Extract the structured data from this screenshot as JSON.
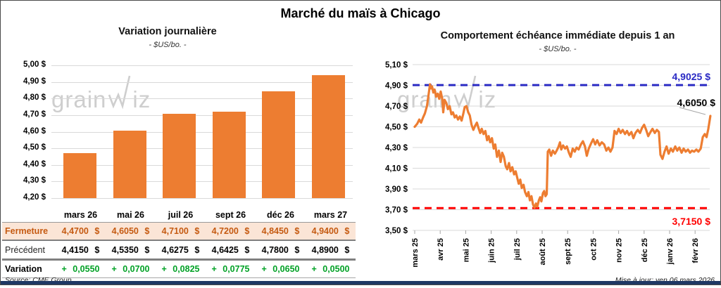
{
  "title": "Marché du maïs à Chicago",
  "watermark": {
    "pre": "grain",
    "post": "iz"
  },
  "footer": {
    "source": "Source: CME Group",
    "updated": "Mise à jour: ven 06 mars 2026"
  },
  "colors": {
    "orange": "#ED7D31",
    "blue": "#2A2AC4",
    "red": "#FF0000",
    "green": "#00A125",
    "peach": "#FBE5D6",
    "brown": "#C55A11",
    "navy": "#1F3864",
    "grid": "#D9D9D9",
    "wm": "#C6C6C6"
  },
  "chart_data": [
    {
      "type": "bar",
      "title": "Variation journalière",
      "subtitle": "- $US/bo. -",
      "categories": [
        "mars 26",
        "mai 26",
        "juil 26",
        "sept 26",
        "déc 26",
        "mars 27"
      ],
      "values": [
        4.47,
        4.605,
        4.71,
        4.72,
        4.845,
        4.94
      ],
      "ylim": [
        4.2,
        5.0
      ],
      "ytick_step": 0.1,
      "ytick_labels": [
        "5,00 $",
        "4,90 $",
        "4,80 $",
        "4,70 $",
        "4,60 $",
        "4,50 $",
        "4,40 $",
        "4,30 $",
        "4,20 $"
      ],
      "grid": true,
      "bar_color": "#ED7D31"
    },
    {
      "type": "line",
      "title": "Comportement échéance immédiate depuis 1 an",
      "subtitle": "- $US/bo. -",
      "x_categories": [
        "mars 25",
        "avr 25",
        "mai 25",
        "juin 25",
        "juil 25",
        "août 25",
        "sept 25",
        "oct 25",
        "nov 25",
        "déc 25",
        "janv 26",
        "févr 26"
      ],
      "ylim": [
        3.5,
        5.1
      ],
      "ytick_step": 0.2,
      "ytick_labels": [
        "5,10 $",
        "4,90 $",
        "4,70 $",
        "4,50 $",
        "4,30 $",
        "4,10 $",
        "3,90 $",
        "3,70 $",
        "3,50 $"
      ],
      "grid": true,
      "line_color": "#ED7D31",
      "ref_high": {
        "value": 4.9025,
        "label": "4,9025 $",
        "color": "#2A2AC4"
      },
      "ref_low": {
        "value": 3.715,
        "label": "3,7150 $",
        "color": "#FF0000"
      },
      "last_point": {
        "value": 4.605,
        "label": "4,6050 $"
      },
      "series": [
        [
          0.0,
          4.5
        ],
        [
          0.1,
          4.53
        ],
        [
          0.18,
          4.57
        ],
        [
          0.25,
          4.54
        ],
        [
          0.33,
          4.59
        ],
        [
          0.4,
          4.63
        ],
        [
          0.48,
          4.7
        ],
        [
          0.55,
          4.82
        ],
        [
          0.6,
          4.91
        ],
        [
          0.64,
          4.87
        ],
        [
          0.68,
          4.89
        ],
        [
          0.73,
          4.83
        ],
        [
          0.78,
          4.86
        ],
        [
          0.84,
          4.79
        ],
        [
          0.9,
          4.82
        ],
        [
          0.96,
          4.77
        ],
        [
          1.02,
          4.84
        ],
        [
          1.08,
          4.77
        ],
        [
          1.12,
          4.64
        ],
        [
          1.17,
          4.76
        ],
        [
          1.24,
          4.73
        ],
        [
          1.3,
          4.67
        ],
        [
          1.37,
          4.7
        ],
        [
          1.44,
          4.62
        ],
        [
          1.5,
          4.64
        ],
        [
          1.57,
          4.59
        ],
        [
          1.63,
          4.61
        ],
        [
          1.7,
          4.57
        ],
        [
          1.77,
          4.6
        ],
        [
          1.84,
          4.56
        ],
        [
          1.9,
          4.62
        ],
        [
          1.96,
          4.69
        ],
        [
          2.03,
          4.7
        ],
        [
          2.1,
          4.64
        ],
        [
          2.16,
          4.61
        ],
        [
          2.23,
          4.52
        ],
        [
          2.3,
          4.47
        ],
        [
          2.37,
          4.51
        ],
        [
          2.44,
          4.54
        ],
        [
          2.5,
          4.49
        ],
        [
          2.57,
          4.44
        ],
        [
          2.63,
          4.48
        ],
        [
          2.7,
          4.43
        ],
        [
          2.77,
          4.46
        ],
        [
          2.84,
          4.37
        ],
        [
          2.9,
          4.41
        ],
        [
          2.96,
          4.35
        ],
        [
          3.03,
          4.39
        ],
        [
          3.1,
          4.29
        ],
        [
          3.16,
          4.33
        ],
        [
          3.23,
          4.21
        ],
        [
          3.3,
          4.27
        ],
        [
          3.37,
          4.16
        ],
        [
          3.43,
          4.25
        ],
        [
          3.5,
          4.21
        ],
        [
          3.57,
          4.12
        ],
        [
          3.63,
          4.09
        ],
        [
          3.7,
          4.15
        ],
        [
          3.76,
          4.07
        ],
        [
          3.83,
          4.11
        ],
        [
          3.9,
          4.04
        ],
        [
          3.96,
          4.07
        ],
        [
          4.03,
          4.0
        ],
        [
          4.08,
          3.95
        ],
        [
          4.14,
          3.99
        ],
        [
          4.2,
          3.91
        ],
        [
          4.27,
          3.94
        ],
        [
          4.33,
          3.87
        ],
        [
          4.4,
          3.83
        ],
        [
          4.46,
          3.87
        ],
        [
          4.52,
          3.79
        ],
        [
          4.58,
          3.83
        ],
        [
          4.64,
          3.75
        ],
        [
          4.7,
          3.72
        ],
        [
          4.76,
          3.76
        ],
        [
          4.81,
          3.73
        ],
        [
          4.87,
          3.79
        ],
        [
          4.92,
          3.82
        ],
        [
          4.97,
          3.78
        ],
        [
          5.03,
          3.86
        ],
        [
          5.08,
          3.88
        ],
        [
          5.13,
          3.83
        ],
        [
          5.18,
          3.85
        ],
        [
          5.22,
          4.26
        ],
        [
          5.28,
          4.28
        ],
        [
          5.35,
          4.22
        ],
        [
          5.42,
          4.27
        ],
        [
          5.5,
          4.24
        ],
        [
          5.57,
          4.27
        ],
        [
          5.63,
          4.3
        ],
        [
          5.7,
          4.35
        ],
        [
          5.75,
          4.28
        ],
        [
          5.82,
          4.32
        ],
        [
          5.9,
          4.29
        ],
        [
          5.97,
          4.31
        ],
        [
          6.05,
          4.25
        ],
        [
          6.12,
          4.21
        ],
        [
          6.2,
          4.29
        ],
        [
          6.28,
          4.26
        ],
        [
          6.35,
          4.3
        ],
        [
          6.43,
          4.28
        ],
        [
          6.52,
          4.33
        ],
        [
          6.6,
          4.36
        ],
        [
          6.68,
          4.31
        ],
        [
          6.75,
          4.22
        ],
        [
          6.83,
          4.29
        ],
        [
          6.92,
          4.34
        ],
        [
          7.0,
          4.38
        ],
        [
          7.08,
          4.33
        ],
        [
          7.16,
          4.37
        ],
        [
          7.25,
          4.32
        ],
        [
          7.34,
          4.35
        ],
        [
          7.43,
          4.33
        ],
        [
          7.52,
          4.27
        ],
        [
          7.6,
          4.3
        ],
        [
          7.68,
          4.26
        ],
        [
          7.76,
          4.3
        ],
        [
          7.84,
          4.46
        ],
        [
          7.92,
          4.43
        ],
        [
          8.0,
          4.48
        ],
        [
          8.08,
          4.44
        ],
        [
          8.16,
          4.47
        ],
        [
          8.25,
          4.43
        ],
        [
          8.33,
          4.46
        ],
        [
          8.41,
          4.42
        ],
        [
          8.5,
          4.45
        ],
        [
          8.58,
          4.39
        ],
        [
          8.66,
          4.44
        ],
        [
          8.75,
          4.47
        ],
        [
          8.84,
          4.44
        ],
        [
          8.92,
          4.49
        ],
        [
          9.0,
          4.52
        ],
        [
          9.08,
          4.47
        ],
        [
          9.16,
          4.41
        ],
        [
          9.25,
          4.45
        ],
        [
          9.33,
          4.48
        ],
        [
          9.42,
          4.44
        ],
        [
          9.5,
          4.47
        ],
        [
          9.58,
          4.45
        ],
        [
          9.64,
          4.23
        ],
        [
          9.72,
          4.19
        ],
        [
          9.8,
          4.26
        ],
        [
          9.88,
          4.31
        ],
        [
          9.96,
          4.24
        ],
        [
          10.05,
          4.29
        ],
        [
          10.13,
          4.26
        ],
        [
          10.22,
          4.31
        ],
        [
          10.3,
          4.27
        ],
        [
          10.38,
          4.3
        ],
        [
          10.47,
          4.25
        ],
        [
          10.55,
          4.29
        ],
        [
          10.63,
          4.26
        ],
        [
          10.72,
          4.28
        ],
        [
          10.8,
          4.25
        ],
        [
          10.88,
          4.27
        ],
        [
          10.96,
          4.26
        ],
        [
          11.05,
          4.28
        ],
        [
          11.13,
          4.26
        ],
        [
          11.22,
          4.29
        ],
        [
          11.3,
          4.4
        ],
        [
          11.38,
          4.43
        ],
        [
          11.45,
          4.4
        ],
        [
          11.52,
          4.48
        ],
        [
          11.6,
          4.605
        ]
      ]
    }
  ],
  "table": {
    "headers": [
      "mars 26",
      "mai 26",
      "juil 26",
      "sept 26",
      "déc 26",
      "mars 27"
    ],
    "rows": [
      {
        "key": "fermeture",
        "label": "Fermeture",
        "cells": [
          "4,4700 $",
          "4,6050 $",
          "4,7100 $",
          "4,7200 $",
          "4,8450 $",
          "4,9400 $"
        ]
      },
      {
        "key": "precedent",
        "label": "Précédent",
        "cells": [
          "4,4150 $",
          "4,5350 $",
          "4,6275 $",
          "4,6425 $",
          "4,7800 $",
          "4,8900 $"
        ]
      },
      {
        "key": "variation",
        "label": "Variation",
        "cells": [
          "+ 0,0550",
          "+ 0,0700",
          "+ 0,0825",
          "+ 0,0775",
          "+ 0,0650",
          "+ 0,0500"
        ]
      }
    ]
  }
}
